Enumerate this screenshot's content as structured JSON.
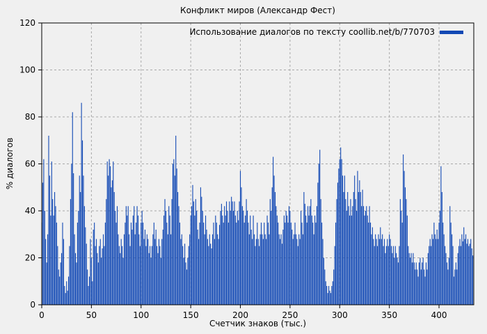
{
  "figure": {
    "title": "Конфликт миров (Александр Фест)",
    "xlabel": "Счетчик знаков (тыс.)",
    "ylabel": "% диалогов",
    "legend_label": "Использование диалогов по тексту coollib.net/b/770703"
  },
  "colors": {
    "background": "#f0f0f0",
    "bar": "#1148b4",
    "grid": "#a8a8a8",
    "border": "#000000",
    "text": "#000000"
  },
  "chart_data": {
    "type": "bar",
    "title": "Конфликт миров (Александр Фест)",
    "xlabel": "Счетчик знаков (тыс.)",
    "ylabel": "% диалогов",
    "legend": [
      "Использование диалогов по тексту coollib.net/b/770703"
    ],
    "legend_position": "top-right",
    "grid": true,
    "xlim": [
      0,
      435
    ],
    "ylim": [
      0,
      120
    ],
    "x_ticks": [
      0,
      50,
      100,
      150,
      200,
      250,
      300,
      350,
      400
    ],
    "y_ticks": [
      0,
      20,
      40,
      60,
      80,
      100,
      120
    ],
    "x_start": 0,
    "x_step": 1,
    "values": [
      35,
      52,
      62,
      40,
      28,
      18,
      30,
      72,
      55,
      38,
      61,
      45,
      38,
      48,
      42,
      35,
      25,
      15,
      12,
      18,
      22,
      35,
      28,
      8,
      5,
      10,
      6,
      12,
      25,
      45,
      60,
      82,
      56,
      30,
      22,
      18,
      35,
      40,
      55,
      48,
      86,
      70,
      55,
      42,
      33,
      26,
      15,
      8,
      12,
      28,
      20,
      10,
      32,
      35,
      25,
      28,
      22,
      18,
      25,
      28,
      20,
      24,
      30,
      25,
      35,
      45,
      61,
      55,
      62,
      59,
      50,
      53,
      61,
      48,
      40,
      35,
      42,
      30,
      25,
      22,
      28,
      25,
      20,
      30,
      35,
      42,
      38,
      42,
      30,
      25,
      35,
      32,
      38,
      42,
      30,
      35,
      42,
      38,
      30,
      25,
      35,
      40,
      35,
      28,
      32,
      25,
      30,
      28,
      22,
      25,
      20,
      25,
      30,
      35,
      28,
      32,
      25,
      22,
      28,
      25,
      20,
      28,
      32,
      38,
      45,
      40,
      35,
      30,
      42,
      38,
      30,
      45,
      60,
      62,
      55,
      72,
      58,
      48,
      42,
      35,
      28,
      30,
      25,
      20,
      26,
      18,
      15,
      20,
      25,
      30,
      38,
      42,
      51,
      44,
      38,
      45,
      40,
      32,
      28,
      35,
      50,
      46,
      40,
      35,
      30,
      38,
      32,
      28,
      25,
      30,
      26,
      24,
      30,
      35,
      28,
      38,
      35,
      30,
      28,
      34,
      40,
      43,
      38,
      35,
      42,
      38,
      44,
      40,
      35,
      44,
      40,
      46,
      44,
      40,
      44,
      38,
      35,
      40,
      36,
      44,
      57,
      50,
      42,
      40,
      35,
      38,
      45,
      40,
      35,
      30,
      38,
      32,
      28,
      38,
      30,
      25,
      28,
      35,
      28,
      25,
      30,
      35,
      30,
      28,
      35,
      30,
      28,
      38,
      35,
      30,
      45,
      40,
      50,
      63,
      55,
      48,
      42,
      38,
      35,
      30,
      28,
      30,
      26,
      32,
      38,
      35,
      40,
      38,
      35,
      42,
      40,
      35,
      32,
      28,
      30,
      35,
      30,
      28,
      25,
      30,
      28,
      40,
      35,
      30,
      48,
      43,
      38,
      35,
      42,
      38,
      42,
      45,
      38,
      35,
      30,
      38,
      35,
      42,
      52,
      60,
      66,
      45,
      35,
      28,
      20,
      15,
      10,
      8,
      5,
      8,
      6,
      5,
      8,
      10,
      15,
      25,
      35,
      45,
      52,
      58,
      62,
      67,
      62,
      55,
      48,
      55,
      45,
      40,
      48,
      42,
      38,
      45,
      38,
      42,
      48,
      55,
      45,
      40,
      57,
      48,
      53,
      48,
      42,
      49,
      42,
      38,
      40,
      42,
      38,
      35,
      42,
      35,
      30,
      33,
      28,
      25,
      30,
      28,
      25,
      30,
      28,
      33,
      28,
      30,
      25,
      28,
      22,
      25,
      28,
      25,
      30,
      28,
      25,
      22,
      25,
      20,
      25,
      22,
      20,
      18,
      25,
      45,
      40,
      35,
      64,
      57,
      50,
      45,
      38,
      25,
      22,
      20,
      22,
      18,
      22,
      18,
      15,
      18,
      15,
      12,
      18,
      20,
      15,
      18,
      20,
      15,
      12,
      18,
      15,
      22,
      25,
      28,
      25,
      30,
      28,
      35,
      30,
      28,
      32,
      28,
      35,
      40,
      59,
      48,
      35,
      30,
      25,
      22,
      18,
      15,
      20,
      42,
      35,
      30,
      25,
      12,
      15,
      18,
      15,
      22,
      25,
      28,
      25,
      30,
      27,
      33,
      28,
      30,
      26,
      28,
      25,
      26,
      28,
      24,
      21
    ]
  }
}
